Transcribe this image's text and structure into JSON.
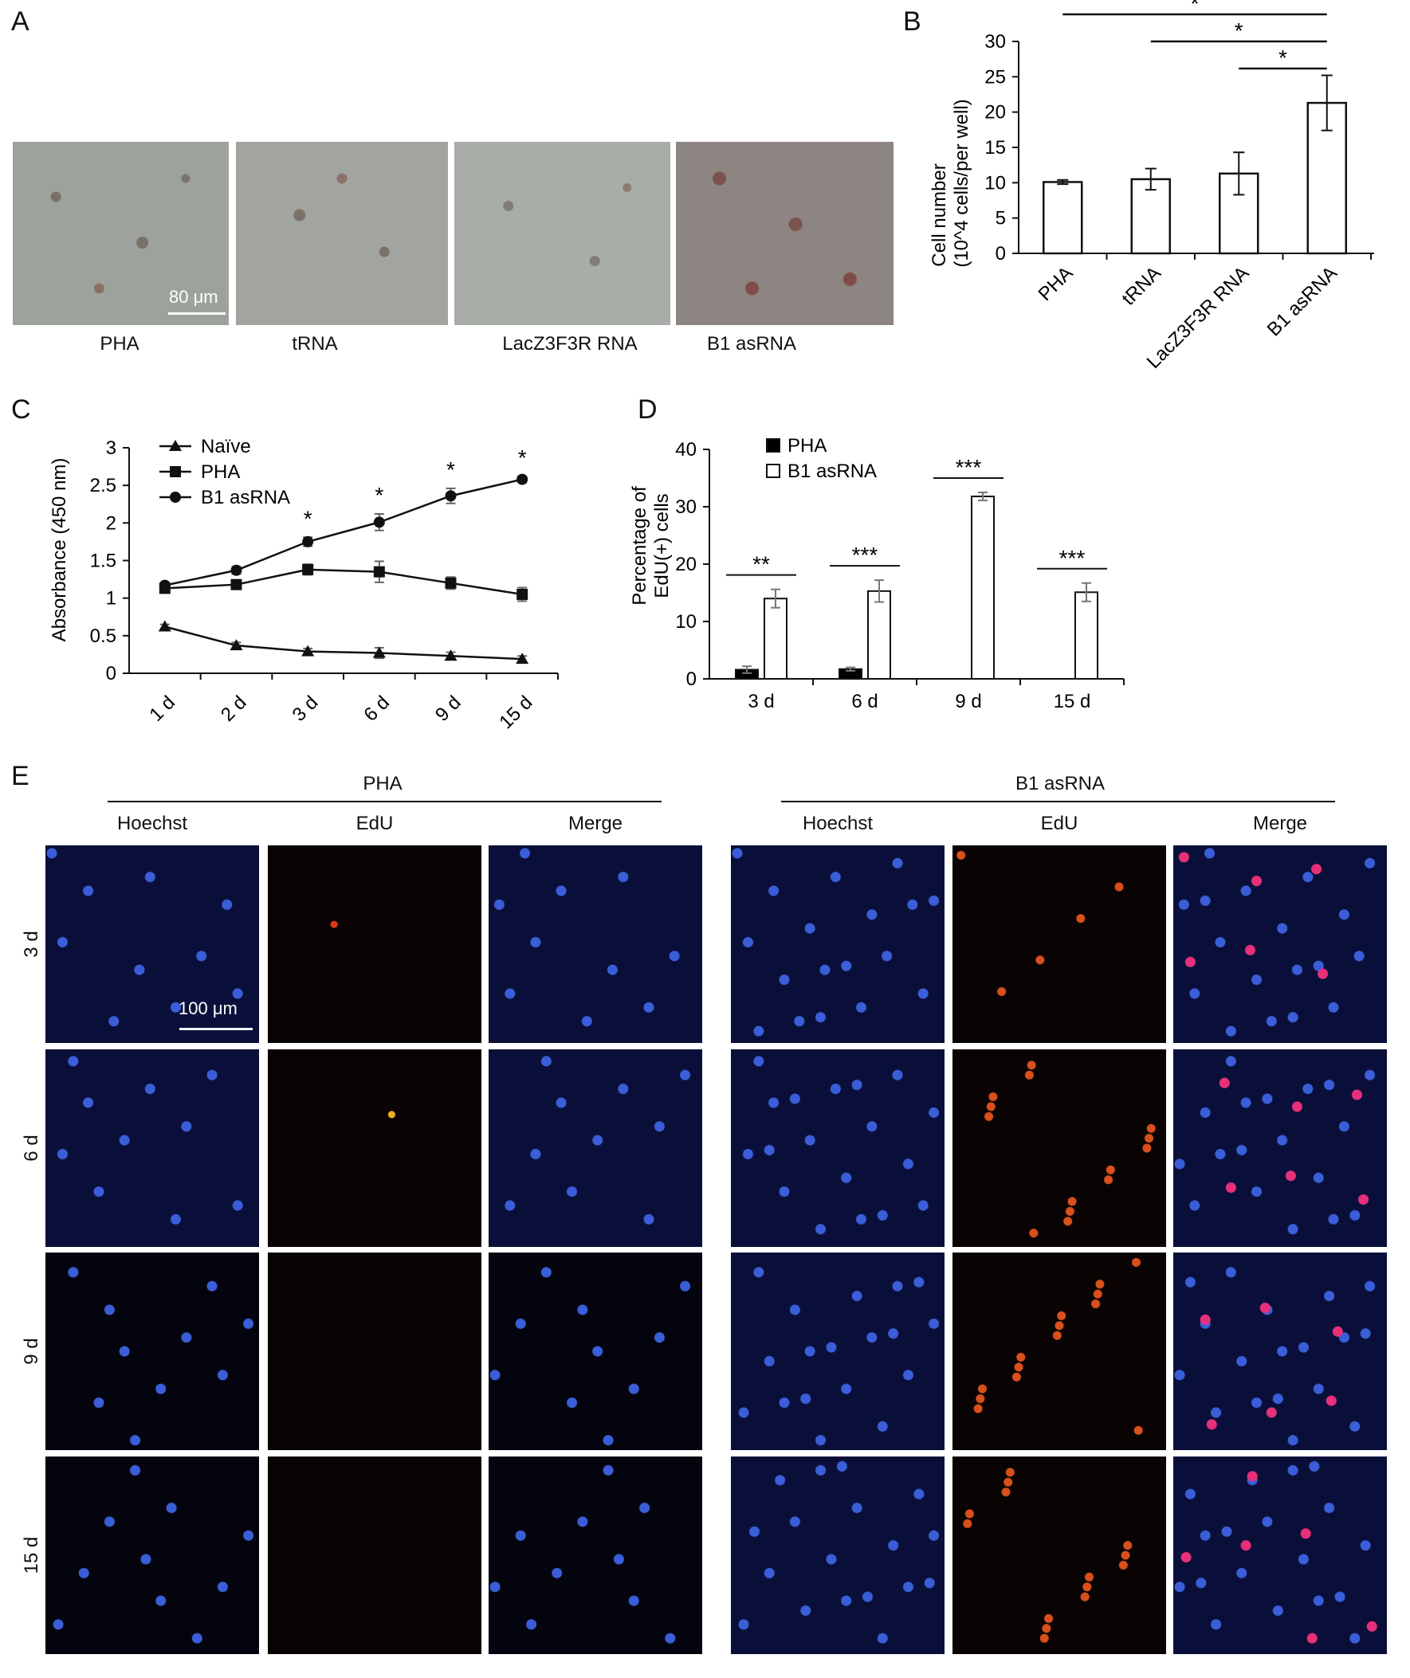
{
  "panels": {
    "A": "A",
    "B": "B",
    "C": "C",
    "D": "D",
    "E": "E"
  },
  "panel_a": {
    "images": [
      "PHA",
      "tRNA",
      "LacZ3F3R RNA",
      "B1 asRNA"
    ],
    "scale_bar": "80 μm"
  },
  "panel_e": {
    "groups": [
      "PHA",
      "B1 asRNA"
    ],
    "channels": [
      "Hoechst",
      "EdU",
      "Merge"
    ],
    "rows": [
      "3 d",
      "6 d",
      "9 d",
      "15 d"
    ],
    "scale_bar": "100 μm"
  },
  "chart_data": [
    {
      "id": "B",
      "type": "bar",
      "categories": [
        "PHA",
        "tRNA",
        "LacZ3F3R RNA",
        "B1 asRNA"
      ],
      "values": [
        10.1,
        10.5,
        11.3,
        21.3
      ],
      "errors": [
        0.3,
        1.5,
        3.0,
        3.9
      ],
      "ylabel_lines": [
        "Cell number",
        "(10^4 cells/per well)"
      ],
      "ylim": [
        0,
        30
      ],
      "yticks": [
        0,
        5,
        10,
        15,
        20,
        25,
        30
      ],
      "significance": [
        {
          "from": "PHA",
          "to": "B1 asRNA",
          "label": "*"
        },
        {
          "from": "tRNA",
          "to": "B1 asRNA",
          "label": "*"
        },
        {
          "from": "LacZ3F3R RNA",
          "to": "B1 asRNA",
          "label": "*"
        }
      ]
    },
    {
      "id": "C",
      "type": "line",
      "x": [
        "1 d",
        "2 d",
        "3 d",
        "6 d",
        "9 d",
        "15 d"
      ],
      "ylabel": "Absorbance (450 nm)",
      "ylim": [
        0,
        3
      ],
      "yticks": [
        0,
        0.5,
        1,
        1.5,
        2,
        2.5,
        3
      ],
      "ytick_labels": [
        "0",
        "0.5",
        "1",
        "1.5",
        "2",
        "2.5",
        "3"
      ],
      "legend": "top-left",
      "series": [
        {
          "name": "Naïve",
          "marker": "triangle",
          "values": [
            0.62,
            0.37,
            0.29,
            0.27,
            0.23,
            0.19
          ],
          "errors": [
            0.03,
            0.04,
            0.04,
            0.07,
            0.05,
            0.04
          ]
        },
        {
          "name": "PHA",
          "marker": "square",
          "values": [
            1.13,
            1.18,
            1.38,
            1.35,
            1.2,
            1.05
          ],
          "errors": [
            0.04,
            0.06,
            0.07,
            0.14,
            0.08,
            0.09
          ]
        },
        {
          "name": "B1 asRNA",
          "marker": "circle",
          "values": [
            1.17,
            1.37,
            1.75,
            2.01,
            2.36,
            2.58
          ],
          "errors": [
            0.04,
            0.05,
            0.06,
            0.11,
            0.1,
            0.04
          ]
        }
      ],
      "annotations": [
        {
          "x": "3 d",
          "label": "*"
        },
        {
          "x": "6 d",
          "label": "*"
        },
        {
          "x": "9 d",
          "label": "*"
        },
        {
          "x": "15 d",
          "label": "*"
        }
      ]
    },
    {
      "id": "D",
      "type": "bar",
      "categories": [
        "3 d",
        "6 d",
        "9 d",
        "15 d"
      ],
      "ylabel_lines": [
        "Percentage of",
        "EdU(+) cells"
      ],
      "ylim": [
        0,
        40
      ],
      "yticks": [
        0,
        10,
        20,
        30,
        40
      ],
      "legend": "top-left",
      "series": [
        {
          "name": "PHA",
          "fill": "#000000",
          "values": [
            1.6,
            1.7,
            0,
            0
          ],
          "errors": [
            0.6,
            0.3,
            0,
            0
          ]
        },
        {
          "name": "B1 asRNA",
          "fill": "#ffffff",
          "values": [
            14.0,
            15.3,
            31.8,
            15.1
          ],
          "errors": [
            1.6,
            1.9,
            0.7,
            1.6
          ]
        }
      ],
      "significance": [
        {
          "x": "3 d",
          "label": "**"
        },
        {
          "x": "6 d",
          "label": "***"
        },
        {
          "x": "9 d",
          "label": "***"
        },
        {
          "x": "15 d",
          "label": "***"
        }
      ]
    }
  ]
}
